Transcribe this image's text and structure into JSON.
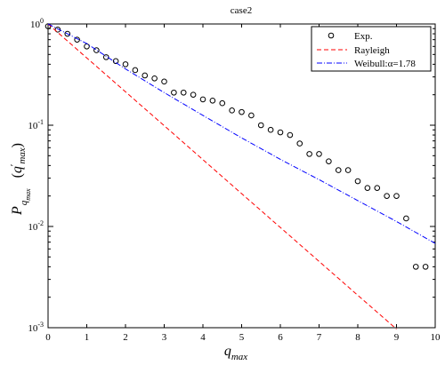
{
  "chart_data": {
    "type": "line",
    "title": "case2",
    "xlabel": "q_max",
    "xlabel_parts": {
      "main": "q",
      "sub": "max"
    },
    "ylabel": "P_{q_max}(q'_max)",
    "ylabel_parts": {
      "main": "P",
      "sub1": "q",
      "sub2": "max",
      "arg": "q",
      "arg_prime": "′",
      "arg_sub": "max"
    },
    "xlim": [
      0,
      10
    ],
    "ylim": [
      0.001,
      1
    ],
    "y_scale": "log",
    "grid": false,
    "legend_position": "top-right",
    "x_ticks": [
      0,
      1,
      2,
      3,
      4,
      5,
      6,
      7,
      8,
      9,
      10
    ],
    "x_tick_labels": [
      "0",
      "1",
      "2",
      "3",
      "4",
      "5",
      "6",
      "7",
      "8",
      "9",
      "10"
    ],
    "y_ticks": [
      0.001,
      0.01,
      0.1,
      1
    ],
    "y_tick_labels": [
      {
        "base": "10",
        "exp": "-3"
      },
      {
        "base": "10",
        "exp": "-2"
      },
      {
        "base": "10",
        "exp": "-1"
      },
      {
        "base": "10",
        "exp": "0"
      }
    ],
    "series": [
      {
        "name": "Exp.",
        "style": "markers",
        "marker": "circle",
        "color": "#000000",
        "x": [
          0.0,
          0.25,
          0.5,
          0.75,
          1.0,
          1.25,
          1.5,
          1.75,
          2.0,
          2.25,
          2.5,
          2.75,
          3.0,
          3.25,
          3.5,
          3.75,
          4.0,
          4.25,
          4.5,
          4.75,
          5.0,
          5.25,
          5.5,
          5.75,
          6.0,
          6.25,
          6.5,
          6.75,
          7.0,
          7.25,
          7.5,
          7.75,
          8.0,
          8.25,
          8.5,
          8.75,
          9.0,
          9.25,
          9.5,
          9.75
        ],
        "y": [
          0.95,
          0.88,
          0.8,
          0.7,
          0.6,
          0.55,
          0.47,
          0.43,
          0.4,
          0.35,
          0.31,
          0.29,
          0.27,
          0.21,
          0.21,
          0.2,
          0.18,
          0.175,
          0.165,
          0.14,
          0.135,
          0.125,
          0.1,
          0.09,
          0.085,
          0.08,
          0.066,
          0.052,
          0.052,
          0.044,
          0.036,
          0.036,
          0.028,
          0.024,
          0.024,
          0.02,
          0.02,
          0.012,
          0.004,
          0.004
        ]
      },
      {
        "name": "Rayleigh",
        "style": "dashed",
        "color": "#ff0000",
        "x": [
          0,
          1,
          2,
          3,
          4,
          5,
          6,
          7,
          8,
          9
        ],
        "y": [
          1.0,
          0.462,
          0.214,
          0.099,
          0.0457,
          0.0211,
          0.00977,
          0.00452,
          0.00209,
          0.00097
        ]
      },
      {
        "name": "Weibull:α=1.78",
        "style": "dash-dot",
        "color": "#0000ff",
        "x": [
          0,
          1,
          2,
          3,
          4,
          5,
          6,
          7,
          8,
          9,
          10
        ],
        "y": [
          1.0,
          0.64,
          0.36,
          0.21,
          0.125,
          0.075,
          0.046,
          0.029,
          0.018,
          0.0112,
          0.0068
        ]
      }
    ]
  }
}
